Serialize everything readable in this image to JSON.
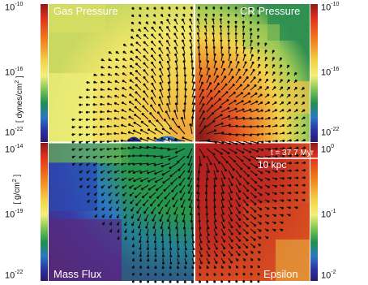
{
  "panels": {
    "top_left_label": "Gas Pressure",
    "top_right_label": "CR Pressure",
    "bottom_left_label": "Mass Flux",
    "bottom_right_label": "Epsilon"
  },
  "annotations": {
    "time_label": "t = 37.7 Myr",
    "scale_label": "10 kpc"
  },
  "left_axis_top": {
    "unit_text": "[ dynes/cm",
    "unit_sup": "2",
    "unit_close": " ]",
    "ticks": [
      {
        "base": "10",
        "exp": "-10"
      },
      {
        "base": "10",
        "exp": "-16"
      },
      {
        "base": "10",
        "exp": "-22"
      }
    ]
  },
  "left_axis_bottom": {
    "unit_text": "[ g/cm",
    "unit_sup": "2",
    "unit_close": " ]",
    "ticks": [
      {
        "base": "10",
        "exp": "-14"
      },
      {
        "base": "10",
        "exp": "-19"
      },
      {
        "base": "10",
        "exp": "-22"
      }
    ]
  },
  "right_axis_top": {
    "ticks": [
      {
        "base": "10",
        "exp": "-10"
      },
      {
        "base": "10",
        "exp": "-16"
      },
      {
        "base": "10",
        "exp": "-22"
      }
    ]
  },
  "right_axis_bottom": {
    "ticks": [
      {
        "base": "10",
        "exp": "0"
      },
      {
        "base": "10",
        "exp": "-1"
      },
      {
        "base": "10",
        "exp": "-2"
      }
    ]
  },
  "colormap": {
    "stops": [
      "#8b1a1a",
      "#e0301e",
      "#f07a1a",
      "#f2d64a",
      "#f5ee7a",
      "#7cc552",
      "#1f8f4f",
      "#2a78c2",
      "#2a2fa0",
      "#2b1a6e"
    ]
  }
}
